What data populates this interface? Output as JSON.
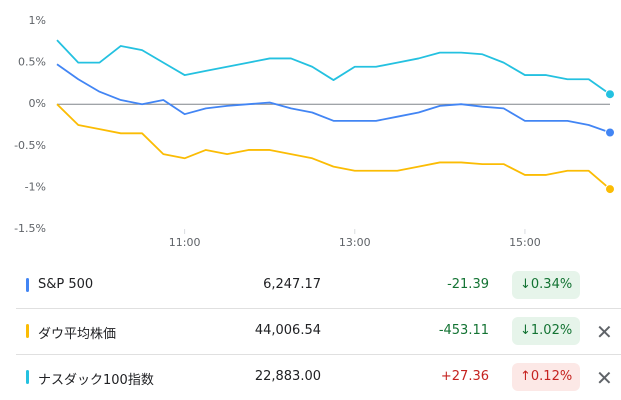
{
  "chart_data": {
    "type": "line",
    "x": [
      "9:30",
      "9:45",
      "10:00",
      "10:15",
      "10:30",
      "10:45",
      "11:00",
      "11:15",
      "11:30",
      "11:45",
      "12:00",
      "12:15",
      "12:30",
      "12:45",
      "13:00",
      "13:15",
      "13:30",
      "13:45",
      "14:00",
      "14:15",
      "14:30",
      "14:45",
      "15:00",
      "15:15",
      "15:30",
      "15:45",
      "16:00"
    ],
    "xlim": [
      "9:30",
      "16:00"
    ],
    "xticks": [
      "11:00",
      "13:00",
      "15:00"
    ],
    "ylim": [
      -1.5,
      1
    ],
    "yticks": [
      {
        "value": 1,
        "label": "1%"
      },
      {
        "value": 0.5,
        "label": "0.5%"
      },
      {
        "value": 0,
        "label": "0%"
      },
      {
        "value": -0.5,
        "label": "-0.5%"
      },
      {
        "value": -1,
        "label": "-1%"
      },
      {
        "value": -1.5,
        "label": "-1.5%"
      }
    ],
    "series": [
      {
        "name": "S&P 500",
        "color": "#4285f4",
        "values": [
          0.48,
          0.3,
          0.15,
          0.05,
          0.0,
          0.05,
          -0.12,
          -0.05,
          -0.02,
          0.0,
          0.02,
          -0.05,
          -0.1,
          -0.2,
          -0.2,
          -0.2,
          -0.15,
          -0.1,
          -0.02,
          0.0,
          -0.03,
          -0.05,
          -0.2,
          -0.2,
          -0.2,
          -0.25,
          -0.34
        ]
      },
      {
        "name": "ダウ平均株価",
        "color": "#fbbc04",
        "values": [
          0.0,
          -0.25,
          -0.3,
          -0.35,
          -0.35,
          -0.6,
          -0.65,
          -0.55,
          -0.6,
          -0.55,
          -0.55,
          -0.6,
          -0.65,
          -0.75,
          -0.8,
          -0.8,
          -0.8,
          -0.75,
          -0.7,
          -0.7,
          -0.72,
          -0.72,
          -0.85,
          -0.85,
          -0.8,
          -0.8,
          -1.02
        ]
      },
      {
        "name": "ナスダック100指数",
        "color": "#24c1e0",
        "values": [
          0.77,
          0.5,
          0.5,
          0.7,
          0.65,
          0.5,
          0.35,
          0.4,
          0.45,
          0.5,
          0.55,
          0.55,
          0.45,
          0.29,
          0.45,
          0.45,
          0.5,
          0.55,
          0.62,
          0.62,
          0.6,
          0.5,
          0.35,
          0.35,
          0.3,
          0.3,
          0.12
        ]
      }
    ]
  },
  "table": {
    "rows": [
      {
        "price": "6,247.17",
        "change": "-21.39",
        "percent": "↓0.34%"
      },
      {
        "price": "44,006.54",
        "change": "-453.11",
        "percent": "↓1.02%"
      },
      {
        "price": "22,883.00",
        "change": "+27.36",
        "percent": "↑0.12%"
      }
    ]
  }
}
